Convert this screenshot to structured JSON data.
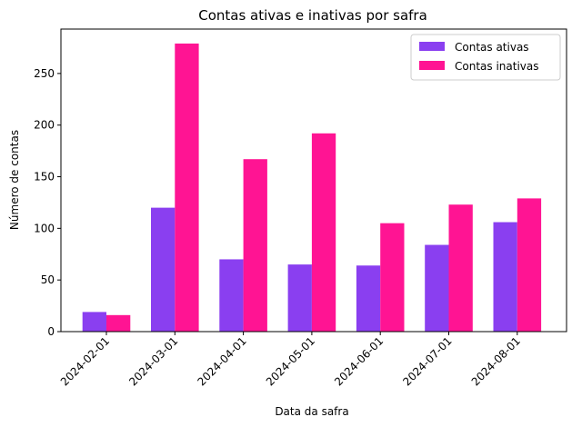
{
  "chart_data": {
    "type": "bar",
    "title": "Contas ativas e inativas por safra",
    "xlabel": "Data da safra",
    "ylabel": "Número de contas",
    "categories": [
      "2024-02-01",
      "2024-03-01",
      "2024-04-01",
      "2024-05-01",
      "2024-06-01",
      "2024-07-01",
      "2024-08-01"
    ],
    "series": [
      {
        "name": "Contas ativas",
        "color": "#8a3ff0",
        "values": [
          19,
          120,
          70,
          65,
          64,
          84,
          106
        ]
      },
      {
        "name": "Contas inativas",
        "color": "#ff1493",
        "values": [
          16,
          279,
          167,
          192,
          105,
          123,
          129
        ]
      }
    ],
    "ylim": [
      0,
      293
    ],
    "yticks": [
      0,
      50,
      100,
      150,
      200,
      250
    ],
    "grid": false,
    "legend": "top-right"
  }
}
